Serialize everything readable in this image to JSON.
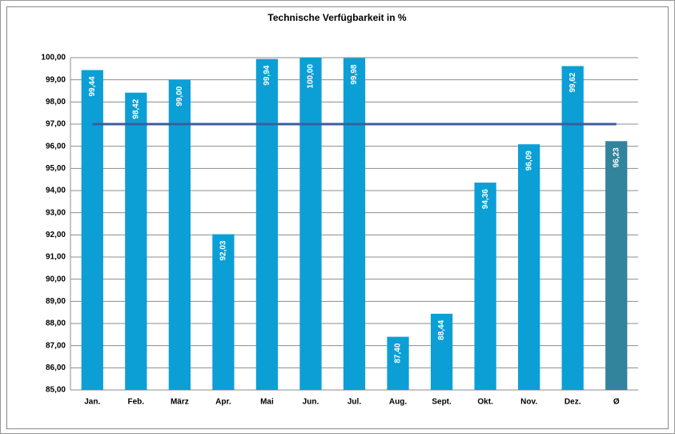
{
  "chart_data": {
    "type": "bar",
    "title": "Technische Verfügbarkeit in %",
    "categories": [
      "Jan.",
      "Feb.",
      "März",
      "Apr.",
      "Mai",
      "Jun.",
      "Jul.",
      "Aug.",
      "Sept.",
      "Okt.",
      "Nov.",
      "Dez.",
      "Ø"
    ],
    "values": [
      99.44,
      98.42,
      99.0,
      92.03,
      99.94,
      100.0,
      99.98,
      87.4,
      88.44,
      94.36,
      96.09,
      99.62,
      96.23
    ],
    "value_labels": [
      "99,44",
      "98,42",
      "99,00",
      "92,03",
      "99,94",
      "100,00",
      "99,98",
      "87,40",
      "88,44",
      "94,36",
      "96,09",
      "99,62",
      "96,23"
    ],
    "colors": [
      "#0b9fd6",
      "#0b9fd6",
      "#0b9fd6",
      "#0b9fd6",
      "#0b9fd6",
      "#0b9fd6",
      "#0b9fd6",
      "#0b9fd6",
      "#0b9fd6",
      "#0b9fd6",
      "#0b9fd6",
      "#0b9fd6",
      "#31849b"
    ],
    "reference_line": {
      "value": 97,
      "color": "#3d5d9c"
    },
    "ylim": [
      85,
      100
    ],
    "yticks": [
      {
        "value": 85,
        "label": "85,00"
      },
      {
        "value": 86,
        "label": "86,00"
      },
      {
        "value": 87,
        "label": "87,00"
      },
      {
        "value": 88,
        "label": "88,00"
      },
      {
        "value": 89,
        "label": "89,00"
      },
      {
        "value": 90,
        "label": "90,00"
      },
      {
        "value": 91,
        "label": "91,00"
      },
      {
        "value": 92,
        "label": "92,00"
      },
      {
        "value": 93,
        "label": "93,00"
      },
      {
        "value": 94,
        "label": "94,00"
      },
      {
        "value": 95,
        "label": "95,00"
      },
      {
        "value": 96,
        "label": "96,00"
      },
      {
        "value": 97,
        "label": "97,00"
      },
      {
        "value": 98,
        "label": "98,00"
      },
      {
        "value": 99,
        "label": "99,00"
      },
      {
        "value": 100,
        "label": "100,00"
      }
    ],
    "grid": true
  }
}
